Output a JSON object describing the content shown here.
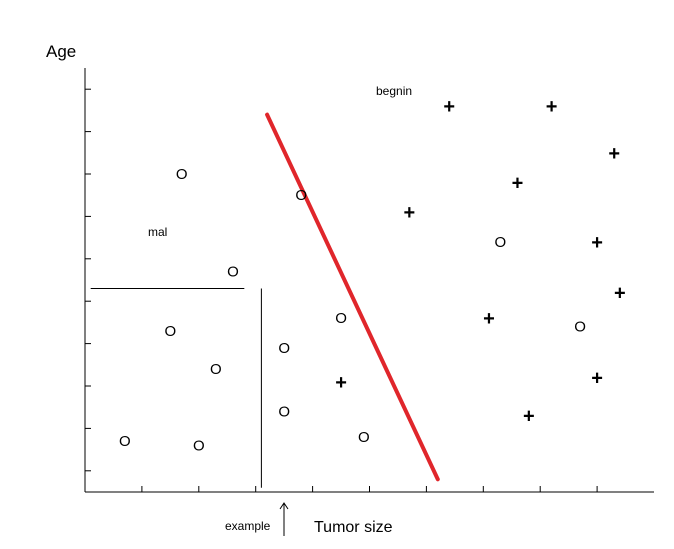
{
  "y_axis_label": "Age",
  "x_axis_label": "Tumor size",
  "example_label": "example",
  "malignant_label": "mal",
  "benign_label": "begnin",
  "o_symbol": "O",
  "plus_symbol": "+",
  "boundary_color": "#e0262b",
  "o_points": [
    {
      "x": 1.7,
      "y": 7.5
    },
    {
      "x": 2.6,
      "y": 5.2
    },
    {
      "x": 1.5,
      "y": 3.8
    },
    {
      "x": 2.3,
      "y": 2.9
    },
    {
      "x": 3.5,
      "y": 3.4
    },
    {
      "x": 0.7,
      "y": 1.2
    },
    {
      "x": 2.0,
      "y": 1.1
    },
    {
      "x": 3.5,
      "y": 1.9
    },
    {
      "x": 3.8,
      "y": 7.0
    },
    {
      "x": 4.5,
      "y": 4.1
    },
    {
      "x": 4.9,
      "y": 1.3
    },
    {
      "x": 7.3,
      "y": 5.9
    },
    {
      "x": 8.7,
      "y": 3.9
    }
  ],
  "plus_points": [
    {
      "x": 6.4,
      "y": 9.1
    },
    {
      "x": 8.2,
      "y": 9.1
    },
    {
      "x": 9.3,
      "y": 8.0
    },
    {
      "x": 7.6,
      "y": 7.3
    },
    {
      "x": 5.7,
      "y": 6.6
    },
    {
      "x": 9.0,
      "y": 5.9
    },
    {
      "x": 9.4,
      "y": 4.7
    },
    {
      "x": 7.1,
      "y": 4.1
    },
    {
      "x": 4.5,
      "y": 2.6
    },
    {
      "x": 9.0,
      "y": 2.7
    },
    {
      "x": 7.8,
      "y": 1.8
    }
  ],
  "boundary_line": {
    "x1": 3.2,
    "y1": 8.9,
    "x2": 6.2,
    "y2": 0.3
  },
  "threshold_horizontal": {
    "x1": 0.1,
    "x2": 2.8,
    "y": 4.8
  },
  "threshold_vertical": {
    "x": 3.1,
    "y1": 0.1,
    "y2": 4.8
  },
  "x_ticks": [
    1,
    2,
    3,
    4,
    5,
    6,
    7,
    8,
    9
  ],
  "y_ticks": [
    0.5,
    1.5,
    2.5,
    3.5,
    4.5,
    5.5,
    6.5,
    7.5,
    8.5,
    9.5
  ]
}
